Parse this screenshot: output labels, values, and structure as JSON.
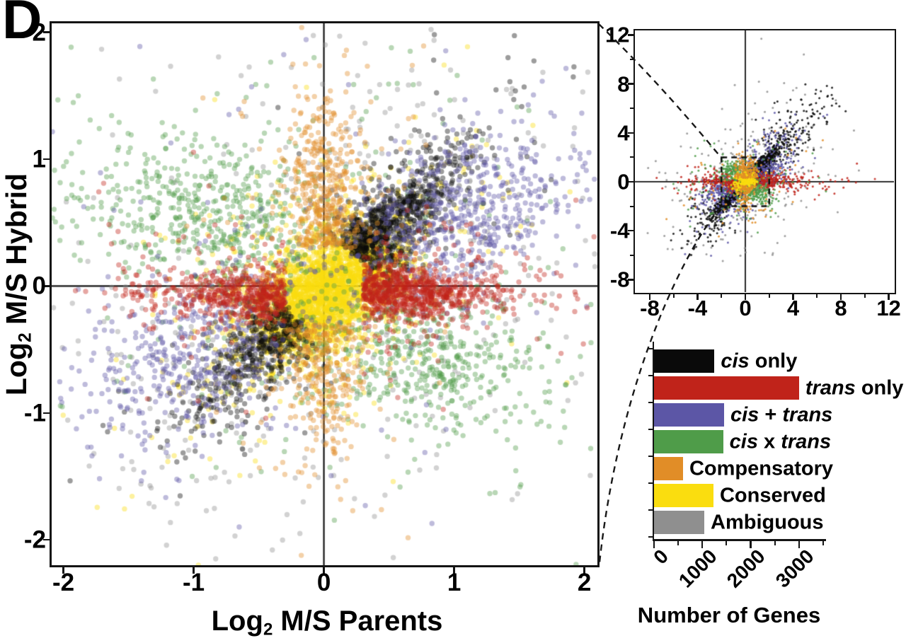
{
  "panel_label": "D",
  "colors": {
    "cis_only": "#0a0a0a",
    "trans_only": "#c0231a",
    "cis_plus_trans": "#5c56a6",
    "cis_x_trans": "#4f9c49",
    "compensatory": "#e18d27",
    "conserved": "#fadd0f",
    "ambiguous": "#8f8f8f",
    "axis": "#141414"
  },
  "chart_data": [
    {
      "id": "main_scatter",
      "type": "scatter",
      "title": "",
      "xlabel": {
        "pre": "Log",
        "sub": "2",
        "post": " M/S Parents"
      },
      "ylabel": {
        "pre": "Log",
        "sub": "2",
        "post": " M/S Hybrid"
      },
      "xlim": [
        -2.09,
        2.1
      ],
      "ylim": [
        -2.2,
        2.07
      ],
      "x_ticks": [
        -2,
        -1,
        0,
        1,
        2
      ],
      "y_ticks": [
        2,
        1,
        0,
        -1,
        -2
      ],
      "grid": false,
      "zero_lines": true,
      "point_radius_px": 3.7,
      "point_alpha": 0.4,
      "seed": 7,
      "categories": [
        {
          "name": "ambiguous",
          "color": "#8f8f8f",
          "clusters": [
            {
              "n": 520,
              "cx": 0,
              "cy": 0,
              "sx": 1.05,
              "sy": 0.7,
              "angle": 38,
              "rmin": 0.55
            },
            {
              "n": 130,
              "cx": 0,
              "cy": 0,
              "sx": 1.6,
              "sy": 1.15,
              "angle": 38,
              "rmin": 1.2
            }
          ]
        },
        {
          "name": "conserved",
          "color": "#fadd0f",
          "clusters": [
            {
              "n": 2300,
              "cx": 0.02,
              "cy": -0.03,
              "sx": 0.32,
              "sy": 0.18,
              "angle": 38
            },
            {
              "n": 520,
              "cx": 0,
              "cy": 0,
              "sx": 0.6,
              "sy": 0.34,
              "angle": 38
            },
            {
              "n": 140,
              "cx": 0,
              "cy": 0,
              "sx": 1.05,
              "sy": 0.6,
              "angle": 38
            }
          ]
        },
        {
          "name": "cis_x_trans",
          "color": "#4f9c49",
          "clusters": [
            {
              "n": 500,
              "cx": -0.8,
              "cy": 0.55,
              "sx": 0.5,
              "sy": 0.27,
              "angle": -14
            },
            {
              "n": 500,
              "cx": 0.72,
              "cy": -0.55,
              "sx": 0.5,
              "sy": 0.27,
              "angle": -14
            },
            {
              "n": 210,
              "cx": 0,
              "cy": 0,
              "sx": 1.25,
              "sy": 0.85,
              "angle": -18,
              "rmin": 0.8
            },
            {
              "n": 90,
              "cx": 0,
              "cy": 0,
              "sx": 1.7,
              "sy": 1.1,
              "angle": 0,
              "rmin": 1.35
            }
          ]
        },
        {
          "name": "cis_only",
          "color": "#0a0a0a",
          "clusters": [
            {
              "band": 45,
              "sign": 1,
              "n": 760,
              "tmin": 0.33,
              "tscale": 0.52,
              "perp": 0.13
            },
            {
              "band": 45,
              "sign": -1,
              "n": 470,
              "tmin": 0.33,
              "tscale": 0.52,
              "perp": 0.13
            },
            {
              "band": 45,
              "sign": 1,
              "n": 120,
              "tmin": 0.3,
              "tscale": 0.85,
              "perp": 0.3
            },
            {
              "band": 45,
              "sign": -1,
              "n": 80,
              "tmin": 0.3,
              "tscale": 0.85,
              "perp": 0.3
            }
          ]
        },
        {
          "name": "cis_plus_trans",
          "color": "#5c56a6",
          "clusters": [
            {
              "n": 600,
              "cx": 1.02,
              "cy": 0.55,
              "sx": 0.52,
              "sy": 0.3,
              "angle": 26
            },
            {
              "n": 430,
              "cx": -1.0,
              "cy": -0.52,
              "sx": 0.5,
              "sy": 0.3,
              "angle": 26
            },
            {
              "n": 130,
              "cx": 0,
              "cy": 0,
              "sx": 1.5,
              "sy": 0.8,
              "angle": 26,
              "rmin": 0.95
            }
          ]
        },
        {
          "name": "trans_only",
          "color": "#c0231a",
          "clusters": [
            {
              "band": 0,
              "sign": 1,
              "n": 730,
              "tmin": 0.3,
              "tscale": 0.5,
              "perp": 0.1,
              "cy": -0.05
            },
            {
              "band": 0,
              "sign": -1,
              "n": 500,
              "tmin": 0.3,
              "tscale": 0.5,
              "perp": 0.1,
              "cy": -0.07
            },
            {
              "band": 0,
              "sign": 1,
              "n": 150,
              "tmin": 0.3,
              "tscale": 0.75,
              "perp": 0.3
            },
            {
              "band": 0,
              "sign": -1,
              "n": 100,
              "tmin": 0.3,
              "tscale": 0.75,
              "perp": 0.3
            }
          ]
        },
        {
          "name": "compensatory",
          "color": "#e18d27",
          "clusters": [
            {
              "band": 90,
              "sign": 1,
              "n": 380,
              "tmin": 0.3,
              "tscale": 0.55,
              "perp": 0.14
            },
            {
              "band": 90,
              "sign": -1,
              "n": 255,
              "tmin": 0.3,
              "tscale": 0.55,
              "perp": 0.14
            },
            {
              "band": 90,
              "sign": 1,
              "n": 95,
              "tmin": 0.3,
              "tscale": 0.8,
              "perp": 0.4
            },
            {
              "band": 90,
              "sign": -1,
              "n": 60,
              "tmin": 0.3,
              "tscale": 0.8,
              "perp": 0.4
            }
          ]
        }
      ]
    },
    {
      "id": "inset_scatter",
      "type": "scatter",
      "title": "",
      "xlabel": null,
      "ylabel": null,
      "xlim": [
        -9.24,
        12.44
      ],
      "ylim": [
        -9.02,
        12.37
      ],
      "x_ticks": [
        -8,
        -4,
        0,
        4,
        8,
        12
      ],
      "y_ticks": [
        12,
        8,
        4,
        0,
        -4,
        -8
      ],
      "grid": false,
      "zero_lines": true,
      "zoom_box": {
        "x0": -2,
        "x1": 2,
        "y0": -2,
        "y1": 2
      },
      "point_radius_px": 1.5,
      "point_alpha": 0.85,
      "seed": 11,
      "categories": [
        {
          "name": "ambiguous",
          "color": "#8f8f8f",
          "clusters": [
            {
              "n": 260,
              "cx": 0,
              "cy": 0,
              "sx": 3.6,
              "sy": 2.7,
              "angle": 40,
              "rmin": 1.5
            }
          ]
        },
        {
          "name": "cis_only",
          "color": "#0a0a0a",
          "clusters": [
            {
              "band": 45,
              "sign": 1,
              "n": 900,
              "tmin": 0.15,
              "tscale": 1.7,
              "perp": 0.28
            },
            {
              "band": 45,
              "sign": -1,
              "n": 700,
              "tmin": 0.15,
              "tscale": 1.7,
              "perp": 0.28
            },
            {
              "band": 45,
              "sign": 1,
              "n": 170,
              "tmin": 3.2,
              "tscale": 3.6,
              "perp": 1.0
            },
            {
              "band": 45,
              "sign": -1,
              "n": 90,
              "tmin": 3.0,
              "tscale": 2.4,
              "perp": 1.0
            }
          ]
        },
        {
          "name": "cis_plus_trans",
          "color": "#5c56a6",
          "clusters": [
            {
              "n": 200,
              "cx": -1.6,
              "cy": -0.5,
              "sx": 0.9,
              "sy": 0.5,
              "angle": 20
            },
            {
              "n": 180,
              "cx": 1.6,
              "cy": 0.5,
              "sx": 0.9,
              "sy": 0.5,
              "angle": 20
            },
            {
              "band": 45,
              "sign": 1,
              "n": 160,
              "tmin": 0.8,
              "tscale": 2.8,
              "perp": 1.1
            },
            {
              "band": 45,
              "sign": -1,
              "n": 140,
              "tmin": 0.8,
              "tscale": 2.2,
              "perp": 1.1
            }
          ]
        },
        {
          "name": "trans_only",
          "color": "#c0231a",
          "clusters": [
            {
              "band": 0,
              "sign": 1,
              "n": 250,
              "tmin": 0.5,
              "tscale": 1.7,
              "perp": 0.35
            },
            {
              "band": 0,
              "sign": -1,
              "n": 190,
              "tmin": 0.5,
              "tscale": 1.7,
              "perp": 0.35
            },
            {
              "band": 0,
              "sign": 1,
              "n": 50,
              "tmin": 3.0,
              "tscale": 3.0,
              "perp": 0.6
            },
            {
              "band": 0,
              "sign": -1,
              "n": 35,
              "tmin": 2.5,
              "tscale": 2.5,
              "perp": 0.6
            }
          ]
        },
        {
          "name": "cis_x_trans",
          "color": "#4f9c49",
          "clusters": [
            {
              "n": 190,
              "cx": -0.9,
              "cy": 0.85,
              "sx": 0.75,
              "sy": 0.45,
              "angle": -10
            },
            {
              "n": 190,
              "cx": 0.9,
              "cy": -0.85,
              "sx": 0.75,
              "sy": 0.45,
              "angle": -10
            },
            {
              "n": 130,
              "cx": 0,
              "cy": 0,
              "sx": 2.3,
              "sy": 1.6,
              "angle": 0,
              "rmin": 1.3
            }
          ]
        },
        {
          "name": "conserved",
          "color": "#fadd0f",
          "clusters": [
            {
              "n": 330,
              "cx": 0,
              "cy": 0,
              "sx": 0.55,
              "sy": 0.38,
              "angle": 35
            }
          ]
        },
        {
          "name": "compensatory",
          "color": "#e18d27",
          "clusters": [
            {
              "band": 90,
              "sign": 1,
              "n": 150,
              "tmin": 0.3,
              "tscale": 1.0,
              "perp": 0.5
            },
            {
              "band": 90,
              "sign": -1,
              "n": 110,
              "tmin": 0.3,
              "tscale": 1.0,
              "perp": 0.5
            },
            {
              "n": 70,
              "cx": 0,
              "cy": 0,
              "sx": 2.7,
              "sy": 1.7,
              "angle": 30,
              "rmin": 1.6
            }
          ]
        }
      ]
    },
    {
      "id": "gene_counts",
      "type": "bar",
      "orientation": "horizontal",
      "xlabel": "Number of Genes",
      "xlim": [
        0,
        3500
      ],
      "major_ticks": [
        0,
        1000,
        2000,
        3000
      ],
      "minor_ticks": [
        500,
        1500,
        2500,
        3500
      ],
      "items": [
        {
          "name": "cis-only",
          "color": "#0a0a0a",
          "value": 1250,
          "label_parts": [
            {
              "t": "cis",
              "i": true
            },
            {
              "t": " only",
              "i": false
            }
          ]
        },
        {
          "name": "trans-only",
          "color": "#c0231a",
          "value": 3000,
          "label_parts": [
            {
              "t": "trans",
              "i": true
            },
            {
              "t": " only",
              "i": false
            }
          ]
        },
        {
          "name": "cis-plus-trans",
          "color": "#5c56a6",
          "value": 1450,
          "label_parts": [
            {
              "t": "cis",
              "i": true
            },
            {
              "t": " + ",
              "i": false
            },
            {
              "t": "trans",
              "i": true
            }
          ]
        },
        {
          "name": "cis-x-trans",
          "color": "#4f9c49",
          "value": 1430,
          "label_parts": [
            {
              "t": "cis",
              "i": true
            },
            {
              "t": " x ",
              "i": false
            },
            {
              "t": "trans",
              "i": true
            }
          ]
        },
        {
          "name": "compensatory",
          "color": "#e18d27",
          "value": 600,
          "label_parts": [
            {
              "t": "Compensatory",
              "i": false
            }
          ]
        },
        {
          "name": "conserved",
          "color": "#fadd0f",
          "value": 1230,
          "label_parts": [
            {
              "t": "Conserved",
              "i": false
            }
          ]
        },
        {
          "name": "ambiguous",
          "color": "#8f8f8f",
          "value": 1040,
          "label_parts": [
            {
              "t": "Ambiguous",
              "i": false
            }
          ]
        }
      ]
    }
  ]
}
